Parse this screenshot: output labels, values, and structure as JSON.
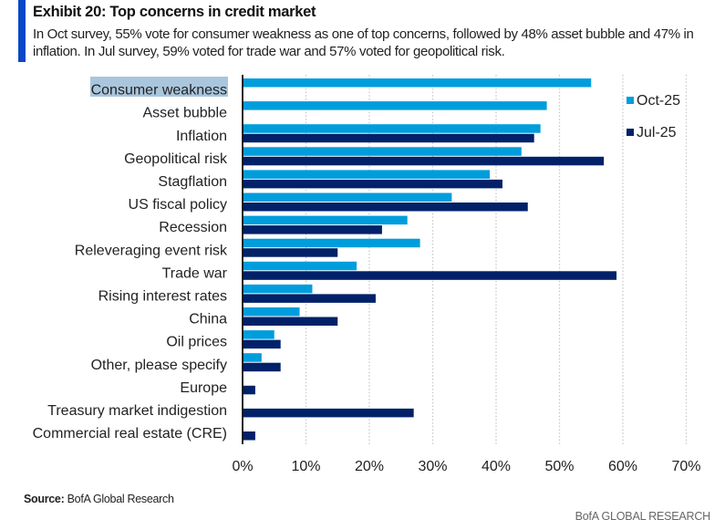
{
  "header": {
    "title": "Exhibit 20: Top concerns in credit market",
    "subtitle": "In Oct survey, 55% vote for consumer weakness as one of top concerns, followed by 48% asset bubble and 47% in inflation. In Jul survey, 59% voted for trade war and 57% voted for geopolitical risk."
  },
  "footer": {
    "source_label": "Source:",
    "source_text": " BofA Global Research",
    "brand": "BofA GLOBAL RESEARCH"
  },
  "colors": {
    "accent": "#0a48c8",
    "oct": "#009ddc",
    "jul": "#012169",
    "highlight": "#a9c6dd",
    "grid": "#c8c8c8"
  },
  "chart_data": {
    "type": "bar",
    "orientation": "horizontal",
    "title": "Exhibit 20: Top concerns in credit market",
    "xlabel": "",
    "ylabel": "",
    "xlim": [
      0,
      70
    ],
    "xticks": [
      0,
      10,
      20,
      30,
      40,
      50,
      60,
      70
    ],
    "xtick_labels": [
      "0%",
      "10%",
      "20%",
      "30%",
      "40%",
      "50%",
      "60%",
      "70%"
    ],
    "grid": "vertical dotted",
    "legend_position": "top-right",
    "highlighted_category": "Consumer weakness",
    "categories": [
      "Consumer weakness",
      "Asset bubble",
      "Inflation",
      "Geopolitical risk",
      "Stagflation",
      "US fiscal policy",
      "Recession",
      "Releveraging event risk",
      "Trade war",
      "Rising interest rates",
      "China",
      "Oil prices",
      "Other, please specify",
      "Europe",
      "Treasury market indigestion",
      "Commercial real estate (CRE)"
    ],
    "series": [
      {
        "name": "Oct-25",
        "color": "#009ddc",
        "values": [
          55,
          48,
          47,
          44,
          39,
          33,
          26,
          28,
          18,
          11,
          9,
          5,
          3,
          null,
          null,
          null
        ]
      },
      {
        "name": "Jul-25",
        "color": "#012169",
        "values": [
          null,
          null,
          46,
          57,
          41,
          45,
          22,
          15,
          59,
          21,
          15,
          6,
          6,
          2,
          27,
          2
        ]
      }
    ]
  }
}
